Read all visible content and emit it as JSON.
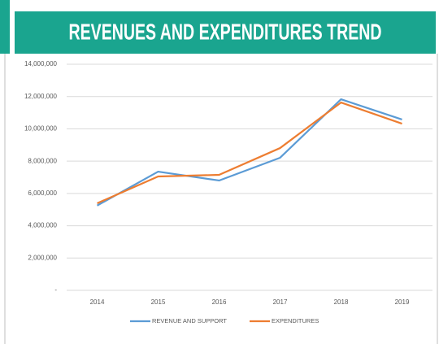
{
  "chart_data": {
    "type": "line",
    "title": "REVENUES AND EXPENDITURES TREND",
    "categories": [
      "2014",
      "2015",
      "2016",
      "2017",
      "2018",
      "2019"
    ],
    "series": [
      {
        "name": "REVENUE AND SUPPORT",
        "color": "#5b9bd5",
        "values": [
          5250000,
          7350000,
          6800000,
          8210000,
          11830000,
          10580000
        ]
      },
      {
        "name": "EXPENDITURES",
        "color": "#ed7d31",
        "values": [
          5390000,
          7050000,
          7150000,
          8810000,
          11630000,
          10320000
        ]
      }
    ],
    "ylim": [
      0,
      14000000
    ],
    "yticks": [
      {
        "value": 0,
        "label": "-"
      },
      {
        "value": 2000000,
        "label": "2,000,000"
      },
      {
        "value": 4000000,
        "label": "4,000,000"
      },
      {
        "value": 6000000,
        "label": "6,000,000"
      },
      {
        "value": 8000000,
        "label": "8,000,000"
      },
      {
        "value": 10000000,
        "label": "10,000,000"
      },
      {
        "value": 12000000,
        "label": "12,000,000"
      },
      {
        "value": 14000000,
        "label": "14,000,000"
      }
    ],
    "grid": true,
    "legend": "bottom"
  }
}
